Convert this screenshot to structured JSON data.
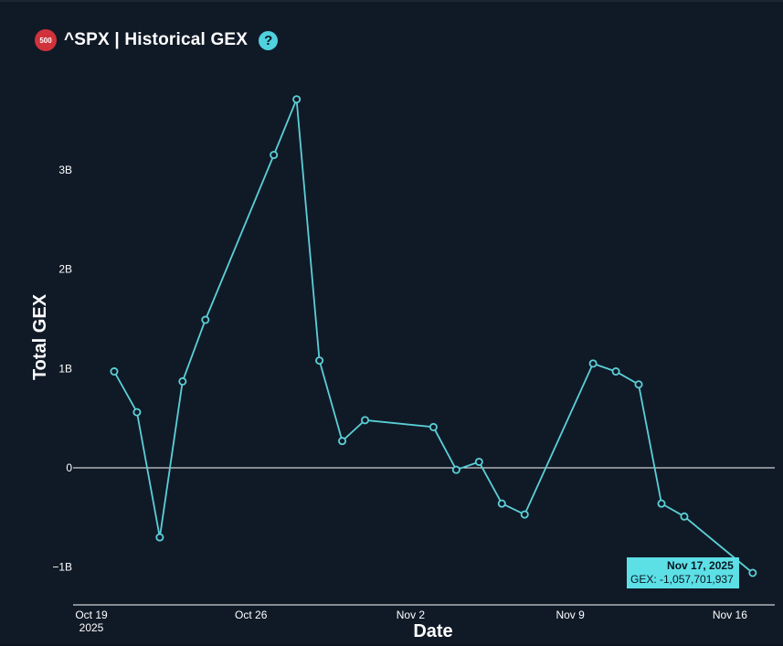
{
  "header": {
    "badge": "500",
    "title": "^SPX | Historical GEX",
    "help": "?"
  },
  "tooltip": {
    "date": "Nov 17, 2025",
    "value": "GEX: -1,057,701,937"
  },
  "colors": {
    "line": "#5ccfd6",
    "background": "#101a27",
    "tooltip": "#5ce0e6",
    "badge": "#d0323b"
  },
  "chart_data": {
    "type": "line",
    "title": "^SPX | Historical GEX",
    "xlabel": "Date",
    "ylabel": "Total GEX",
    "x_ticks": [
      "Oct 19\n2025",
      "Oct 26",
      "Nov 2",
      "Nov 9",
      "Nov 16"
    ],
    "y_ticks": [
      "3B",
      "2B",
      "1B",
      "0",
      "−1B"
    ],
    "ylim": [
      -1300000000,
      3800000000
    ],
    "x": [
      "2025-10-20",
      "2025-10-21",
      "2025-10-22",
      "2025-10-23",
      "2025-10-24",
      "2025-10-27",
      "2025-10-28",
      "2025-10-29",
      "2025-10-30",
      "2025-10-31",
      "2025-11-03",
      "2025-11-04",
      "2025-11-05",
      "2025-11-06",
      "2025-11-07",
      "2025-11-10",
      "2025-11-11",
      "2025-11-12",
      "2025-11-13",
      "2025-11-14",
      "2025-11-17"
    ],
    "series": [
      {
        "values": [
          970000000,
          560000000,
          -700000000,
          870000000,
          1490000000,
          3150000000,
          3710000000,
          1080000000,
          270000000,
          480000000,
          410000000,
          -20000000,
          60000000,
          -360000000,
          -470000000,
          1050000000,
          970000000,
          840000000,
          -360000000,
          -490000000,
          -1057701937
        ]
      }
    ],
    "grid": false,
    "zero_line": true
  }
}
